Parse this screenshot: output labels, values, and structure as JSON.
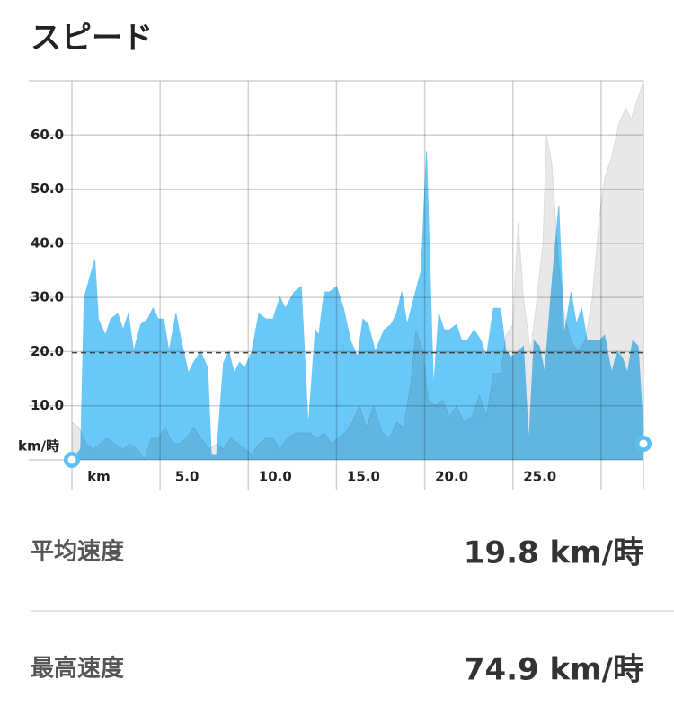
{
  "header": {
    "title": "スピード"
  },
  "chart_data": {
    "type": "area",
    "xlim": [
      0,
      32.4
    ],
    "ylim": [
      0,
      70
    ],
    "x_unit": "km",
    "y_unit": "km/時",
    "xticks": [
      {
        "value": 0,
        "label": "km"
      },
      {
        "value": 5,
        "label": "5.0"
      },
      {
        "value": 10,
        "label": "10.0"
      },
      {
        "value": 15,
        "label": "15.0"
      },
      {
        "value": 20,
        "label": "20.0"
      },
      {
        "value": 25,
        "label": "25.0"
      },
      {
        "value": 30,
        "label": null
      }
    ],
    "yticks": [
      {
        "value": 0,
        "label": null
      },
      {
        "value": 10,
        "label": "10.0"
      },
      {
        "value": 20,
        "label": "20.0"
      },
      {
        "value": 30,
        "label": "30.0"
      },
      {
        "value": 40,
        "label": "40.0"
      },
      {
        "value": 50,
        "label": "50.0"
      },
      {
        "value": 60,
        "label": "60.0"
      },
      {
        "value": 70,
        "label": null
      }
    ],
    "grid": true,
    "reference_line": 19.8,
    "series": [
      {
        "color": "#6ac8f8",
        "x": [
          0,
          0.5,
          0.7,
          1.3,
          1.5,
          1.9,
          2.2,
          2.6,
          2.9,
          3.2,
          3.5,
          3.9,
          4.3,
          4.6,
          4.9,
          5.2,
          5.5,
          5.9,
          6.2,
          6.6,
          6.9,
          7.3,
          7.7,
          7.9,
          8.2,
          8.6,
          8.9,
          9.2,
          9.5,
          9.8,
          10.2,
          10.6,
          11.0,
          11.4,
          11.8,
          12.1,
          12.6,
          13.0,
          13.4,
          13.8,
          14.0,
          14.3,
          14.6,
          15.0,
          15.4,
          15.8,
          16.2,
          16.5,
          16.8,
          17.2,
          17.7,
          18.1,
          18.4,
          18.7,
          19.0,
          19.4,
          19.8,
          20.1,
          20.5,
          20.8,
          21.1,
          21.4,
          21.8,
          22.1,
          22.4,
          22.8,
          23.2,
          23.5,
          23.9,
          24.3,
          24.6,
          24.9,
          25.3,
          25.6,
          25.9,
          26.2,
          26.5,
          26.8,
          27.2,
          27.6,
          27.9,
          28.3,
          28.6,
          28.9,
          29.2,
          29.6,
          29.9,
          30.2,
          30.6,
          30.9,
          31.2,
          31.5,
          31.8,
          32.1,
          32.4
        ],
        "values": [
          0,
          2,
          30,
          37,
          26,
          23,
          26,
          27,
          24,
          27,
          20,
          25,
          26,
          28,
          26,
          26,
          20,
          27,
          22,
          16,
          18,
          20,
          17,
          1,
          1,
          18,
          20,
          16,
          18,
          17,
          20,
          27,
          26,
          26,
          30,
          28,
          31,
          32,
          6,
          24,
          23,
          31,
          31,
          32,
          28,
          22,
          19,
          26,
          25,
          20,
          24,
          25,
          27,
          31,
          25,
          30,
          35,
          57,
          13,
          27,
          24,
          24,
          25,
          22,
          22,
          24,
          22,
          19,
          28,
          28,
          20,
          19,
          20,
          21,
          3,
          22,
          21,
          16,
          32,
          47,
          23,
          31,
          25,
          28,
          22,
          22,
          22,
          23,
          16,
          20,
          19,
          16,
          22,
          21,
          5
        ]
      },
      {
        "color": "rgba(0,0,0,0.09)",
        "x": [
          0,
          0.4,
          0.8,
          1.2,
          1.6,
          2.0,
          2.4,
          2.9,
          3.3,
          3.7,
          4.1,
          4.5,
          4.9,
          5.3,
          5.7,
          6.1,
          6.5,
          6.9,
          7.3,
          7.8,
          8.2,
          8.6,
          9.0,
          9.4,
          9.8,
          10.2,
          10.6,
          11.0,
          11.4,
          11.8,
          12.2,
          12.7,
          13.1,
          13.5,
          13.9,
          14.3,
          14.7,
          15.1,
          15.5,
          15.9,
          16.3,
          16.7,
          17.1,
          17.6,
          18.0,
          18.4,
          18.8,
          19.2,
          19.5,
          19.9,
          20.2,
          20.6,
          21.0,
          21.4,
          21.8,
          22.2,
          22.7,
          23.1,
          23.5,
          23.9,
          24.3,
          24.6,
          25.0,
          25.3,
          25.6,
          26.0,
          26.4,
          26.7,
          26.9,
          27.2,
          27.6,
          27.9,
          28.3,
          28.7,
          29.1,
          29.5,
          29.9,
          30.2,
          30.6,
          31.0,
          31.4,
          31.7,
          32.0,
          32.4
        ],
        "values": [
          7,
          6,
          3,
          2,
          3,
          4,
          3,
          2,
          3,
          2,
          0,
          4,
          4,
          6,
          3,
          3,
          4,
          6,
          4,
          2,
          3,
          2,
          4,
          3,
          2,
          1,
          3,
          4,
          4,
          2,
          4,
          5,
          5,
          5,
          4,
          5,
          3,
          4,
          5,
          7,
          10,
          6,
          10,
          5,
          4,
          7,
          6,
          14,
          24,
          20,
          11,
          10,
          11,
          8,
          10,
          7,
          8,
          12,
          8,
          16,
          16,
          23,
          25,
          44,
          30,
          20,
          31,
          40,
          60,
          55,
          36,
          27,
          22,
          20,
          22,
          30,
          45,
          52,
          56,
          62,
          65,
          63,
          66,
          70
        ]
      }
    ]
  },
  "stats": [
    {
      "label": "平均速度",
      "value": "19.8 km/時"
    },
    {
      "label": "最高速度",
      "value": "74.9 km/時"
    }
  ]
}
